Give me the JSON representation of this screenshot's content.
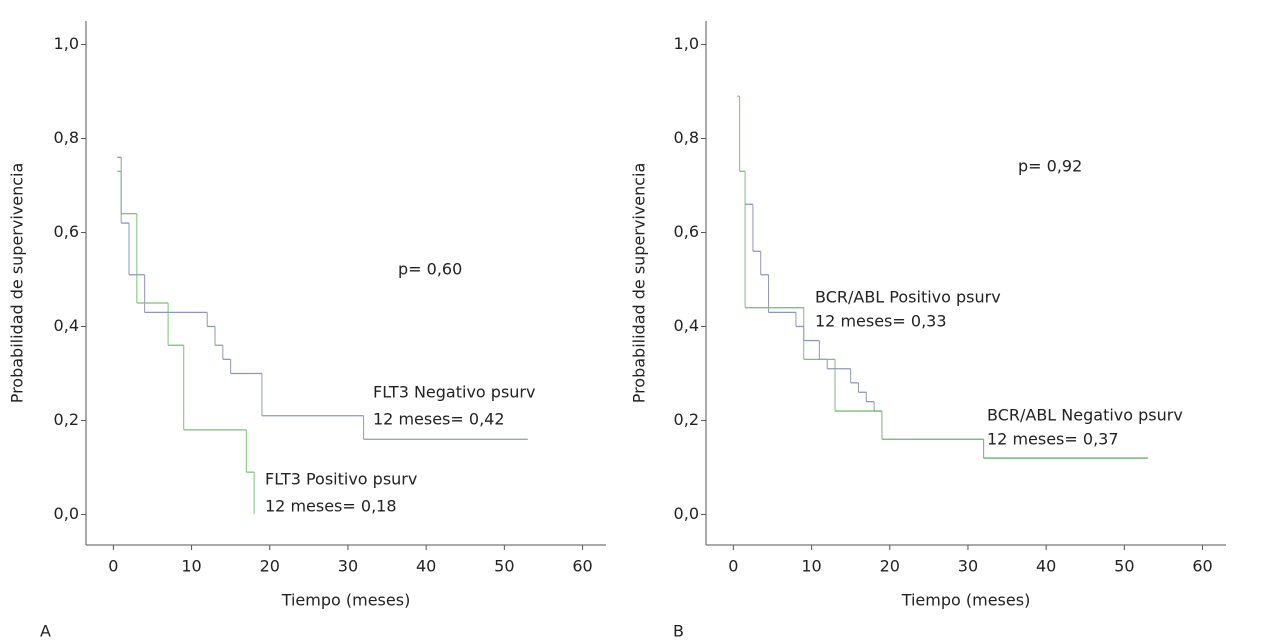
{
  "chart_data": [
    {
      "type": "step",
      "x_label": "Tiempo (meses)",
      "y_label": "Probabilidad de supervivencia",
      "panel_label": "A",
      "xlim": [
        -3.5,
        63
      ],
      "ylim": [
        -0.065,
        1.05
      ],
      "xticks": [
        0,
        10,
        20,
        30,
        40,
        50,
        60
      ],
      "yticks": [
        {
          "value": 0,
          "label": "0,0"
        },
        {
          "value": 0.2,
          "label": "0,2"
        },
        {
          "value": 0.4,
          "label": "0,4"
        },
        {
          "value": 0.6,
          "label": "0,6"
        },
        {
          "value": 0.8,
          "label": "0,8"
        },
        {
          "value": 1,
          "label": "1,0"
        }
      ],
      "series": [
        {
          "color": "#8e97b9",
          "x": [
            0.5,
            1,
            2,
            4,
            12,
            13,
            14,
            15,
            18,
            19,
            32,
            53
          ],
          "values": [
            0.76,
            0.62,
            0.51,
            0.43,
            0.4,
            0.36,
            0.33,
            0.3,
            0.3,
            0.21,
            0.16,
            0.16
          ]
        },
        {
          "color": "#7dbf7b",
          "x": [
            0.5,
            1,
            3,
            7,
            9,
            17,
            18
          ],
          "values": [
            0.73,
            0.64,
            0.45,
            0.36,
            0.18,
            0.09,
            0.0
          ]
        }
      ],
      "annotations": [
        "p= 0,60",
        "FLT3 Negativo psurv",
        "12 meses= 0,42",
        "FLT3 Positivo psurv",
        "12 meses= 0,18"
      ]
    },
    {
      "type": "step",
      "x_label": "Tiempo (meses)",
      "y_label": "Probabilidad de supervivencia",
      "panel_label": "B",
      "xlim": [
        -3.5,
        63
      ],
      "ylim": [
        -0.065,
        1.05
      ],
      "xticks": [
        0,
        10,
        20,
        30,
        40,
        50,
        60
      ],
      "yticks": [
        {
          "value": 0,
          "label": "0,0"
        },
        {
          "value": 0.2,
          "label": "0,2"
        },
        {
          "value": 0.4,
          "label": "0,4"
        },
        {
          "value": 0.6,
          "label": "0,6"
        },
        {
          "value": 0.8,
          "label": "0,8"
        },
        {
          "value": 1,
          "label": "1,0"
        }
      ],
      "series": [
        {
          "color": "#8e97b9",
          "x": [
            1.5,
            2.5,
            3.5,
            4.5,
            8,
            9,
            11,
            12,
            15,
            16,
            17,
            18,
            19,
            32,
            53
          ],
          "values": [
            0.66,
            0.56,
            0.51,
            0.43,
            0.4,
            0.37,
            0.33,
            0.31,
            0.28,
            0.26,
            0.24,
            0.22,
            0.16,
            0.12,
            0.12
          ]
        },
        {
          "color": "#7dbf7b",
          "x": [
            0.5,
            0.8,
            1.5,
            9,
            13,
            19,
            32,
            53
          ],
          "values": [
            0.89,
            0.73,
            0.44,
            0.33,
            0.22,
            0.16,
            0.12,
            0.12
          ]
        }
      ],
      "annotations": [
        "p= 0,92",
        "BCR/ABL Positivo psurv",
        "12 meses= 0,33",
        "BCR/ABL Negativo psurv",
        "12 meses= 0,37"
      ]
    }
  ]
}
